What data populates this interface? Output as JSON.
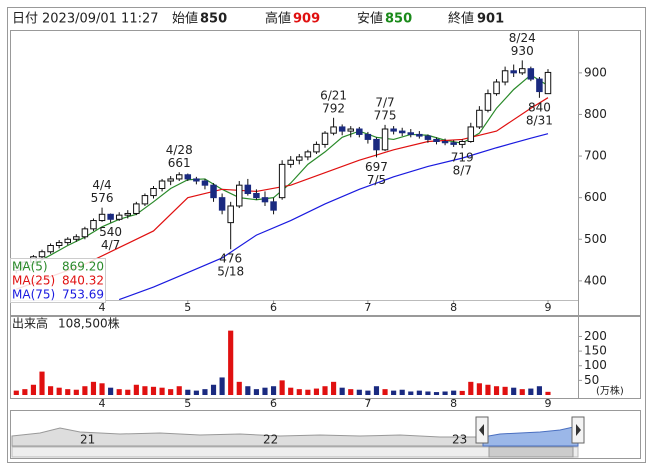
{
  "header": {
    "date_label": "日付",
    "date": "2023/09/01 11:27",
    "open_label": "始値",
    "high_label": "高値",
    "low_label": "安値",
    "close_label": "終値"
  },
  "chart_data": {
    "type": "candlestick",
    "ohlc": [
      [
        425,
        435,
        418,
        432
      ],
      [
        432,
        448,
        428,
        445
      ],
      [
        445,
        462,
        440,
        458
      ],
      [
        458,
        475,
        450,
        470
      ],
      [
        470,
        490,
        465,
        485
      ],
      [
        485,
        498,
        478,
        492
      ],
      [
        492,
        505,
        486,
        500
      ],
      [
        500,
        512,
        494,
        506
      ],
      [
        506,
        530,
        500,
        525
      ],
      [
        525,
        550,
        520,
        545
      ],
      [
        545,
        576,
        542,
        560
      ],
      [
        560,
        562,
        540,
        548
      ],
      [
        548,
        565,
        544,
        558
      ],
      [
        558,
        570,
        550,
        562
      ],
      [
        562,
        590,
        558,
        585
      ],
      [
        585,
        610,
        580,
        605
      ],
      [
        605,
        628,
        598,
        622
      ],
      [
        622,
        645,
        615,
        640
      ],
      [
        640,
        652,
        630,
        645
      ],
      [
        645,
        661,
        640,
        655
      ],
      [
        655,
        658,
        640,
        645
      ],
      [
        645,
        650,
        632,
        640
      ],
      [
        640,
        645,
        620,
        630
      ],
      [
        630,
        635,
        590,
        600
      ],
      [
        600,
        610,
        560,
        570
      ],
      [
        540,
        590,
        476,
        580
      ],
      [
        580,
        640,
        575,
        630
      ],
      [
        630,
        645,
        605,
        610
      ],
      [
        610,
        620,
        595,
        600
      ],
      [
        600,
        615,
        580,
        590
      ],
      [
        590,
        600,
        560,
        570
      ],
      [
        600,
        690,
        595,
        680
      ],
      [
        680,
        700,
        672,
        690
      ],
      [
        690,
        705,
        680,
        698
      ],
      [
        698,
        715,
        690,
        710
      ],
      [
        710,
        735,
        705,
        728
      ],
      [
        728,
        760,
        720,
        755
      ],
      [
        755,
        792,
        750,
        770
      ],
      [
        770,
        776,
        750,
        760
      ],
      [
        760,
        772,
        745,
        765
      ],
      [
        765,
        770,
        745,
        752
      ],
      [
        752,
        758,
        730,
        740
      ],
      [
        740,
        745,
        697,
        715
      ],
      [
        715,
        775,
        712,
        765
      ],
      [
        765,
        772,
        752,
        760
      ],
      [
        760,
        768,
        748,
        756
      ],
      [
        756,
        765,
        745,
        752
      ],
      [
        752,
        760,
        742,
        748
      ],
      [
        748,
        752,
        732,
        740
      ],
      [
        740,
        745,
        728,
        735
      ],
      [
        735,
        742,
        726,
        732
      ],
      [
        732,
        738,
        722,
        728
      ],
      [
        728,
        740,
        719,
        735
      ],
      [
        735,
        780,
        732,
        770
      ],
      [
        770,
        820,
        765,
        810
      ],
      [
        810,
        860,
        805,
        850
      ],
      [
        850,
        885,
        845,
        878
      ],
      [
        878,
        915,
        870,
        905
      ],
      [
        905,
        920,
        890,
        900
      ],
      [
        900,
        930,
        895,
        910
      ],
      [
        910,
        915,
        880,
        885
      ],
      [
        885,
        890,
        840,
        855
      ],
      [
        850,
        909,
        850,
        901
      ]
    ],
    "up_color": "#ffffff",
    "down_color": "#1a2a80",
    "xlim": [
      -0.5,
      65.5
    ],
    "xticks": [
      {
        "value": 10,
        "label": "4"
      },
      {
        "value": 20,
        "label": "5"
      },
      {
        "value": 30,
        "label": "6"
      },
      {
        "value": 41,
        "label": "7"
      },
      {
        "value": 51,
        "label": "8"
      },
      {
        "value": 62,
        "label": "9"
      }
    ],
    "ylim": [
      354,
      1003
    ],
    "yticks": [
      400,
      500,
      600,
      700,
      800,
      900
    ],
    "series": [
      {
        "name": "MA(5)",
        "color": "#2a8a2a",
        "value_labels": "869.20",
        "x": [
          0,
          2,
          4,
          6,
          8,
          10,
          12,
          14,
          16,
          18,
          20,
          22,
          24,
          26,
          28,
          30,
          32,
          34,
          36,
          38,
          40,
          42,
          44,
          46,
          48,
          50,
          52,
          54,
          56,
          58,
          60,
          62
        ],
        "values": [
          425,
          440,
          462,
          485,
          505,
          530,
          548,
          560,
          590,
          622,
          643,
          645,
          620,
          600,
          595,
          600,
          635,
          680,
          710,
          745,
          760,
          745,
          740,
          752,
          750,
          738,
          731,
          755,
          815,
          860,
          895,
          869.2
        ]
      },
      {
        "name": "MA(25)",
        "color": "#e01010",
        "value_labels": "840.32",
        "x": [
          0,
          4,
          8,
          12,
          16,
          20,
          24,
          28,
          32,
          36,
          40,
          44,
          48,
          52,
          56,
          60,
          62
        ],
        "values": [
          380,
          410,
          440,
          480,
          520,
          600,
          620,
          615,
          630,
          660,
          690,
          715,
          735,
          740,
          760,
          815,
          840.32
        ]
      },
      {
        "name": "MA(75)",
        "color": "#1a1adf",
        "value_labels": "753.69",
        "x": [
          12,
          16,
          20,
          24,
          28,
          32,
          36,
          40,
          44,
          48,
          52,
          56,
          60,
          62
        ],
        "values": [
          355,
          385,
          420,
          455,
          510,
          545,
          585,
          620,
          650,
          675,
          695,
          720,
          743,
          753.69
        ]
      }
    ],
    "annotations": [
      {
        "label": "4/4",
        "value": 576,
        "kind": "high"
      },
      {
        "label": "4/7",
        "value": 540,
        "kind": "low"
      },
      {
        "label": "4/28",
        "value": 661,
        "kind": "high"
      },
      {
        "label": "5/18",
        "value": 476,
        "kind": "low"
      },
      {
        "label": "6/21",
        "value": 792,
        "kind": "high"
      },
      {
        "label": "7/5",
        "value": 697,
        "kind": "low"
      },
      {
        "label": "7/7",
        "value": 775,
        "kind": "high"
      },
      {
        "label": "8/7",
        "value": 719,
        "kind": "low"
      },
      {
        "label": "8/24",
        "value": 930,
        "kind": "high"
      },
      {
        "label": "8/31",
        "value": 840,
        "kind": "low"
      }
    ],
    "volume": {
      "title": "出来高",
      "last_label": "108,500株",
      "unit": "(万株)",
      "up_color": "#e01010",
      "down_color": "#1a2a80",
      "ylim": [
        0,
        270
      ],
      "yticks": [
        50,
        100,
        150,
        200
      ],
      "values": [
        15,
        20,
        35,
        80,
        30,
        25,
        20,
        18,
        30,
        45,
        40,
        25,
        20,
        18,
        35,
        30,
        28,
        25,
        20,
        30,
        18,
        15,
        20,
        35,
        60,
        220,
        45,
        30,
        20,
        25,
        30,
        50,
        25,
        20,
        18,
        22,
        30,
        45,
        25,
        20,
        18,
        15,
        30,
        20,
        15,
        18,
        12,
        15,
        12,
        10,
        12,
        15,
        14,
        45,
        40,
        35,
        30,
        28,
        25,
        20,
        22,
        30,
        10.85
      ]
    }
  },
  "navigator": {
    "labels": [
      "21",
      "22",
      "23"
    ]
  }
}
